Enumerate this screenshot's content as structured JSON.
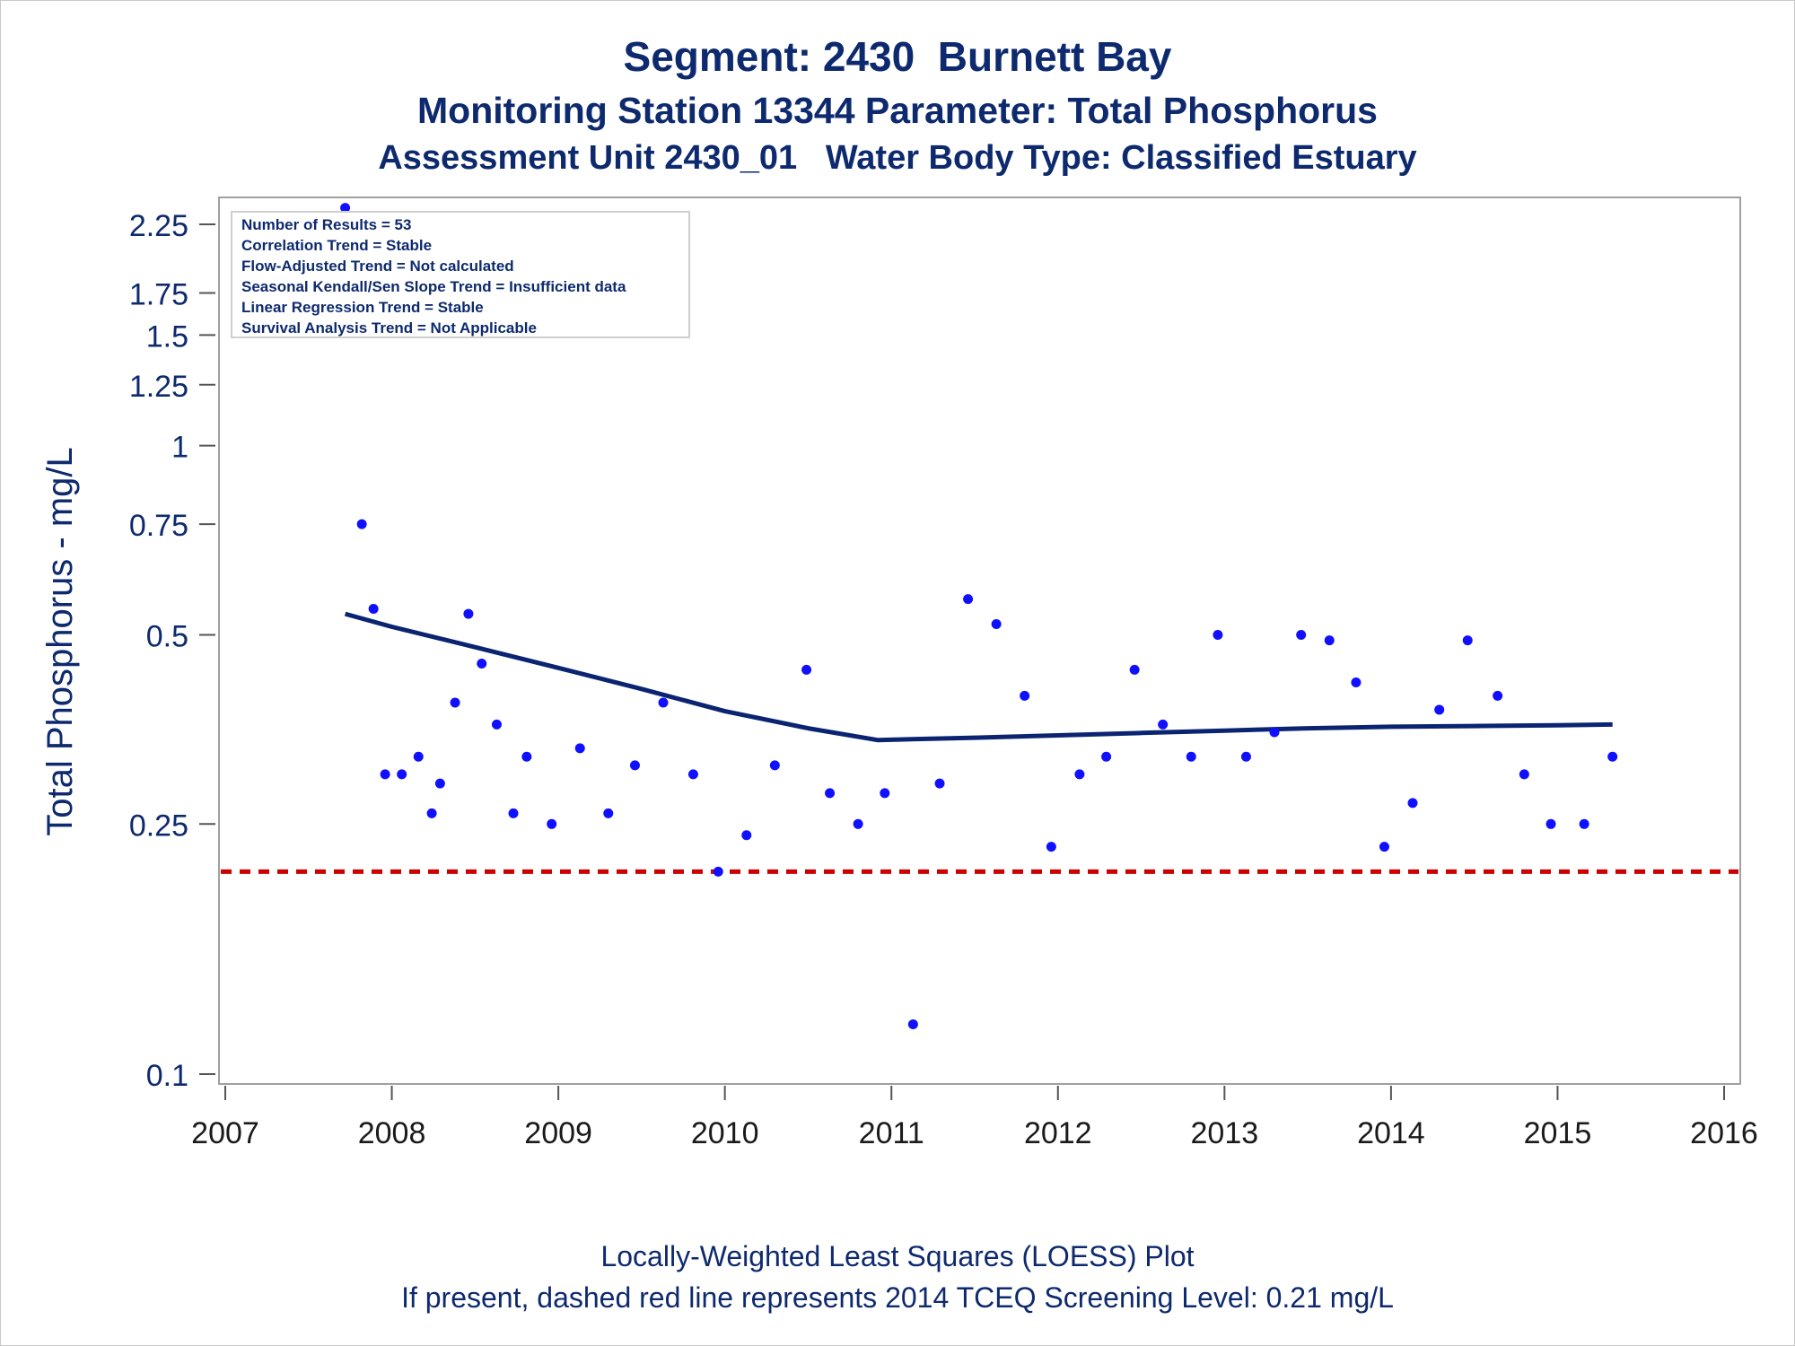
{
  "titles": {
    "line1": "Segment: 2430  Burnett Bay",
    "line2": "Monitoring Station 13344 Parameter: Total Phosphorus",
    "line3": "Assessment Unit 2430_01   Water Body Type: Classified Estuary"
  },
  "footnotes": {
    "line1": "Locally-Weighted Least Squares (LOESS) Plot",
    "line2": "If present, dashed red line represents 2014 TCEQ Screening Level: 0.21 mg/L"
  },
  "stats_box": [
    "Number of Results = 53",
    "Correlation Trend = Stable",
    "Flow-Adjusted Trend = Not calculated",
    "Seasonal Kendall/Sen Slope Trend = Insufficient data",
    "Linear Regression Trend = Stable",
    "Survival Analysis Trend = Not Applicable"
  ],
  "colors": {
    "title": "#0e2a6e",
    "points": "#1010ff",
    "loess": "#0a2472",
    "screening": "#cc0000",
    "frame": "#a0a0a0"
  },
  "chart_data": {
    "type": "scatter",
    "xlabel": "",
    "ylabel": "Total Phosphorus - mg/L",
    "yscale": "log",
    "xlim": [
      2007,
      2016
    ],
    "ylim": [
      0.1,
      2.25
    ],
    "x_ticks": [
      2007,
      2008,
      2009,
      2010,
      2011,
      2012,
      2013,
      2014,
      2015,
      2016
    ],
    "y_ticks": [
      0.1,
      0.25,
      0.5,
      0.75,
      1,
      1.25,
      1.5,
      1.75,
      2.25
    ],
    "y_tick_labels": [
      "0.1",
      "0.25",
      "0.5",
      "0.75",
      "1",
      "1.25",
      "1.5",
      "1.75",
      "2.25"
    ],
    "points": [
      {
        "x": 2007.72,
        "y": 2.39
      },
      {
        "x": 2007.82,
        "y": 0.75
      },
      {
        "x": 2007.89,
        "y": 0.55
      },
      {
        "x": 2007.96,
        "y": 0.3
      },
      {
        "x": 2008.06,
        "y": 0.3
      },
      {
        "x": 2008.16,
        "y": 0.32
      },
      {
        "x": 2008.24,
        "y": 0.26
      },
      {
        "x": 2008.29,
        "y": 0.29
      },
      {
        "x": 2008.38,
        "y": 0.39
      },
      {
        "x": 2008.46,
        "y": 0.54
      },
      {
        "x": 2008.54,
        "y": 0.45
      },
      {
        "x": 2008.63,
        "y": 0.36
      },
      {
        "x": 2008.73,
        "y": 0.26
      },
      {
        "x": 2008.81,
        "y": 0.32
      },
      {
        "x": 2008.96,
        "y": 0.25
      },
      {
        "x": 2009.13,
        "y": 0.33
      },
      {
        "x": 2009.3,
        "y": 0.26
      },
      {
        "x": 2009.46,
        "y": 0.31
      },
      {
        "x": 2009.63,
        "y": 0.39
      },
      {
        "x": 2009.81,
        "y": 0.3
      },
      {
        "x": 2009.96,
        "y": 0.21
      },
      {
        "x": 2010.13,
        "y": 0.24
      },
      {
        "x": 2010.3,
        "y": 0.31
      },
      {
        "x": 2010.49,
        "y": 0.44
      },
      {
        "x": 2010.63,
        "y": 0.28
      },
      {
        "x": 2010.8,
        "y": 0.25
      },
      {
        "x": 2010.96,
        "y": 0.28
      },
      {
        "x": 2011.13,
        "y": 0.12
      },
      {
        "x": 2011.29,
        "y": 0.29
      },
      {
        "x": 2011.46,
        "y": 0.57
      },
      {
        "x": 2011.63,
        "y": 0.52
      },
      {
        "x": 2011.8,
        "y": 0.4
      },
      {
        "x": 2011.96,
        "y": 0.23
      },
      {
        "x": 2012.13,
        "y": 0.3
      },
      {
        "x": 2012.29,
        "y": 0.32
      },
      {
        "x": 2012.46,
        "y": 0.44
      },
      {
        "x": 2012.63,
        "y": 0.36
      },
      {
        "x": 2012.8,
        "y": 0.32
      },
      {
        "x": 2012.96,
        "y": 0.5
      },
      {
        "x": 2013.13,
        "y": 0.32
      },
      {
        "x": 2013.3,
        "y": 0.35
      },
      {
        "x": 2013.46,
        "y": 0.5
      },
      {
        "x": 2013.63,
        "y": 0.49
      },
      {
        "x": 2013.79,
        "y": 0.42
      },
      {
        "x": 2013.96,
        "y": 0.23
      },
      {
        "x": 2014.13,
        "y": 0.27
      },
      {
        "x": 2014.29,
        "y": 0.38
      },
      {
        "x": 2014.46,
        "y": 0.49
      },
      {
        "x": 2014.64,
        "y": 0.4
      },
      {
        "x": 2014.8,
        "y": 0.3
      },
      {
        "x": 2014.96,
        "y": 0.25
      },
      {
        "x": 2015.16,
        "y": 0.25
      },
      {
        "x": 2015.33,
        "y": 0.32
      }
    ],
    "loess": [
      {
        "x": 2007.72,
        "y": 0.54
      },
      {
        "x": 2008.0,
        "y": 0.515
      },
      {
        "x": 2008.5,
        "y": 0.478
      },
      {
        "x": 2009.0,
        "y": 0.443
      },
      {
        "x": 2009.5,
        "y": 0.41
      },
      {
        "x": 2010.0,
        "y": 0.378
      },
      {
        "x": 2010.5,
        "y": 0.355
      },
      {
        "x": 2010.92,
        "y": 0.34
      },
      {
        "x": 2011.1,
        "y": 0.341
      },
      {
        "x": 2011.5,
        "y": 0.343
      },
      {
        "x": 2012.0,
        "y": 0.346
      },
      {
        "x": 2012.5,
        "y": 0.349
      },
      {
        "x": 2013.0,
        "y": 0.352
      },
      {
        "x": 2013.5,
        "y": 0.355
      },
      {
        "x": 2014.0,
        "y": 0.357
      },
      {
        "x": 2014.5,
        "y": 0.358
      },
      {
        "x": 2015.0,
        "y": 0.359
      },
      {
        "x": 2015.33,
        "y": 0.36
      }
    ],
    "reference_line": {
      "y": 0.21,
      "style": "dashed"
    }
  }
}
